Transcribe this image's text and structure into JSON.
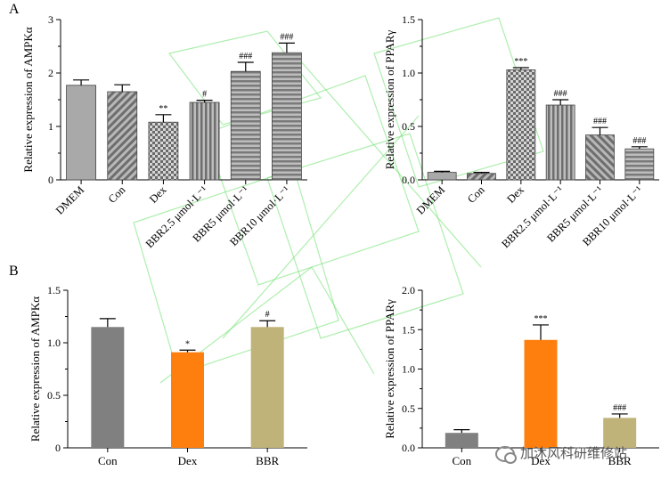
{
  "panels": {
    "A": "A",
    "B": "B"
  },
  "watermark_label": "加沐风科研维修站",
  "chart_data": [
    {
      "id": "A1",
      "type": "bar",
      "ylabel": "Relative expression of AMPKα",
      "ylim": [
        0,
        3
      ],
      "yticks": [
        "0",
        "1",
        "2",
        "3"
      ],
      "categories": [
        "DMEM",
        "Con",
        "Dex",
        "BBR2.5 μmol·L⁻¹",
        "BBR5 μmol·L⁻¹",
        "BBR10 μmol·L⁻¹"
      ],
      "values": [
        1.77,
        1.65,
        1.08,
        1.45,
        2.03,
        2.38
      ],
      "errors": [
        0.1,
        0.13,
        0.14,
        0.04,
        0.17,
        0.18
      ],
      "significance": [
        "",
        "",
        "**",
        "#",
        "###",
        "###"
      ],
      "patterns": [
        "solid",
        "diag-ne",
        "check",
        "vertical",
        "horizontal",
        "horizontal"
      ],
      "tick_rotation": "rotated"
    },
    {
      "id": "A2",
      "type": "bar",
      "ylabel": "Relative expression of PPARγ",
      "ylim": [
        0,
        1.5
      ],
      "yticks": [
        "0.0",
        "0.5",
        "1.0",
        "1.5"
      ],
      "categories": [
        "DMEM",
        "Con",
        "Dex",
        "BBR2.5 μmol·L⁻¹",
        "BBR5 μmol·L⁻¹",
        "BBR10 μmol·L⁻¹"
      ],
      "values": [
        0.07,
        0.06,
        1.03,
        0.7,
        0.42,
        0.29
      ],
      "errors": [
        0.01,
        0.01,
        0.02,
        0.05,
        0.07,
        0.02
      ],
      "significance": [
        "",
        "",
        "***",
        "###",
        "###",
        "###"
      ],
      "patterns": [
        "solid",
        "diag-ne",
        "check",
        "vertical",
        "diag-nw",
        "horizontal"
      ],
      "tick_rotation": "rotated"
    },
    {
      "id": "B1",
      "type": "bar",
      "ylabel": "Relative expression of AMPKα",
      "ylim": [
        0,
        1.5
      ],
      "yticks": [
        "0",
        "0.5",
        "1.0",
        "1.5"
      ],
      "categories": [
        "Con",
        "Dex",
        "BBR"
      ],
      "values": [
        1.15,
        0.91,
        1.15
      ],
      "errors": [
        0.08,
        0.02,
        0.06
      ],
      "significance": [
        "",
        "*",
        "#"
      ],
      "colors": [
        "#808080",
        "#ff7f0e",
        "#bfb37a"
      ],
      "tick_rotation": "none"
    },
    {
      "id": "B2",
      "type": "bar",
      "ylabel": "Relative expression of PPARγ",
      "ylim": [
        0,
        2.0
      ],
      "yticks": [
        "0.0",
        "0.5",
        "1.0",
        "1.5",
        "2.0"
      ],
      "categories": [
        "Con",
        "Dex",
        "BBR"
      ],
      "values": [
        0.19,
        1.37,
        0.38
      ],
      "errors": [
        0.04,
        0.19,
        0.05
      ],
      "significance": [
        "",
        "***",
        "###"
      ],
      "colors": [
        "#808080",
        "#ff7f0e",
        "#bfb37a"
      ],
      "tick_rotation": "none"
    }
  ]
}
